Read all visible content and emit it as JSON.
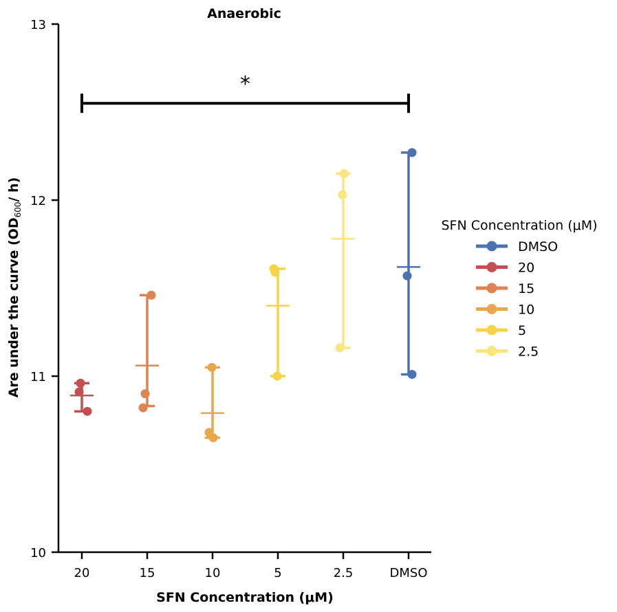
{
  "chart_data": {
    "type": "scatter",
    "title": "Anaerobic",
    "xlabel": "SFN Concentration (μM)",
    "ylabel_parts": {
      "main": "Are under the curve (OD",
      "sub": "600",
      "tail": "/ h)"
    },
    "ylim": [
      10,
      13
    ],
    "yticks": [
      "10",
      "11",
      "12",
      "13"
    ],
    "categories": [
      "20",
      "15",
      "10",
      "5",
      "2.5",
      "DMSO"
    ],
    "series": [
      {
        "name": "20",
        "color": "#c44e52",
        "points": [
          10.91,
          10.8,
          10.96
        ],
        "mean": 10.89,
        "err_low": 10.8,
        "err_high": 10.96
      },
      {
        "name": "15",
        "color": "#dd8452",
        "points": [
          10.82,
          10.9,
          11.46
        ],
        "mean": 11.06,
        "err_low": 10.83,
        "err_high": 11.46
      },
      {
        "name": "10",
        "color": "#e8a84a",
        "points": [
          10.68,
          10.65,
          11.05
        ],
        "mean": 10.79,
        "err_low": 10.65,
        "err_high": 11.05
      },
      {
        "name": "5",
        "color": "#f5d547",
        "points": [
          11.61,
          11.59,
          11.0
        ],
        "mean": 11.4,
        "err_low": 11.0,
        "err_high": 11.61
      },
      {
        "name": "2.5",
        "color": "#fbe57f",
        "points": [
          11.16,
          12.03,
          12.15
        ],
        "mean": 11.78,
        "err_low": 11.16,
        "err_high": 12.15
      },
      {
        "name": "DMSO",
        "color": "#4c72b0",
        "points": [
          12.27,
          11.57,
          11.01
        ],
        "mean": 11.62,
        "err_low": 11.01,
        "err_high": 12.27
      }
    ],
    "legend": {
      "title": "SFN Concentration (μM)",
      "entries": [
        {
          "label": "DMSO",
          "color": "#4c72b0"
        },
        {
          "label": "20",
          "color": "#c44e52"
        },
        {
          "label": "15",
          "color": "#dd8452"
        },
        {
          "label": "10",
          "color": "#e8a84a"
        },
        {
          "label": "5",
          "color": "#f5d547"
        },
        {
          "label": "2.5",
          "color": "#fbe57f"
        }
      ],
      "position": "right"
    },
    "significance": {
      "from": "20",
      "to": "DMSO",
      "y": 12.55,
      "label": "*"
    }
  }
}
